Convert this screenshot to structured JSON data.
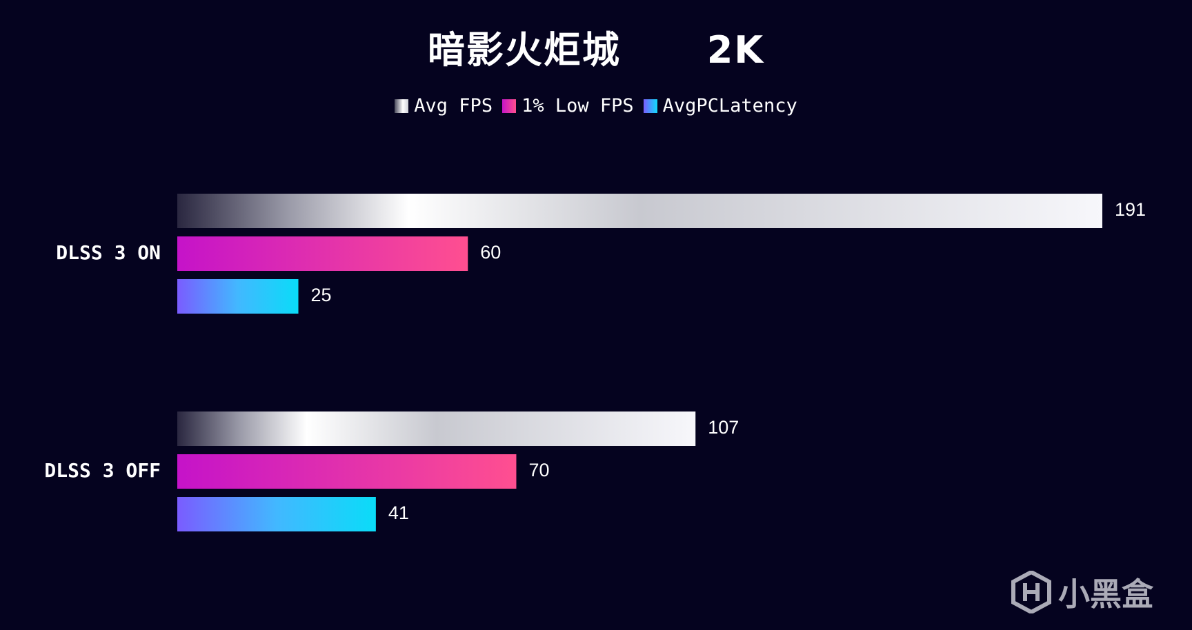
{
  "chart_data": {
    "type": "bar",
    "orientation": "horizontal",
    "title": "暗影火炬城      2K",
    "categories": [
      "DLSS 3 ON",
      "DLSS 3 OFF"
    ],
    "series": [
      {
        "name": "Avg FPS",
        "values": [
          191,
          107
        ],
        "color": "#f2f2f6"
      },
      {
        "name": "1% Low FPS",
        "values": [
          60,
          70
        ],
        "color": "#e52fae"
      },
      {
        "name": "AvgPCLatency",
        "values": [
          25,
          41
        ],
        "color": "#3fb8ff"
      }
    ],
    "xlim": [
      0,
      191
    ],
    "grid": false,
    "legend_position": "top-center",
    "value_labels": true
  },
  "colors": {
    "background": "#05031f",
    "text": "#ffffff"
  },
  "watermark": {
    "text": "小黑盒",
    "icon": "heybox-logo-icon"
  }
}
